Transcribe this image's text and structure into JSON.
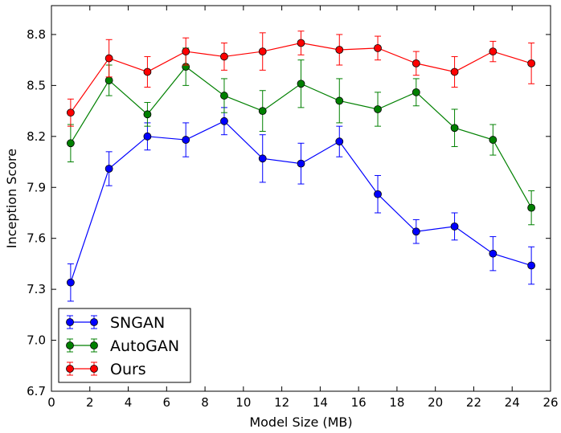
{
  "chart_data": {
    "type": "line",
    "title": "",
    "xlabel": "Model Size (MB)",
    "ylabel": "Inception Score",
    "xlim": [
      0,
      26
    ],
    "ylim": [
      6.7,
      8.97
    ],
    "xticks": [
      0,
      2,
      4,
      6,
      8,
      10,
      12,
      14,
      16,
      18,
      20,
      22,
      24,
      26
    ],
    "yticks": [
      6.7,
      7.0,
      7.3,
      7.6,
      7.9,
      8.2,
      8.5,
      8.8
    ],
    "xtick_labels": [
      "0",
      "2",
      "4",
      "6",
      "8",
      "10",
      "12",
      "14",
      "16",
      "18",
      "20",
      "22",
      "24",
      "26"
    ],
    "ytick_labels": [
      "6.7",
      "7.0",
      "7.3",
      "7.6",
      "7.9",
      "8.2",
      "8.5",
      "8.8"
    ],
    "grid": false,
    "legend_position": "bottom-left",
    "x": [
      1,
      3,
      5,
      7,
      9,
      11,
      13,
      15,
      17,
      19,
      21,
      23,
      25
    ],
    "series": [
      {
        "name": "SNGAN",
        "color": "#0000ff",
        "values": [
          7.34,
          8.01,
          8.2,
          8.18,
          8.29,
          8.07,
          8.04,
          8.17,
          7.86,
          7.64,
          7.67,
          7.51,
          7.44
        ],
        "errors": [
          0.11,
          0.1,
          0.08,
          0.1,
          0.08,
          0.14,
          0.12,
          0.09,
          0.11,
          0.07,
          0.08,
          0.1,
          0.11
        ]
      },
      {
        "name": "AutoGAN",
        "color": "#008000",
        "values": [
          8.16,
          8.53,
          8.33,
          8.61,
          8.44,
          8.35,
          8.51,
          8.41,
          8.36,
          8.46,
          8.25,
          8.18,
          7.78
        ],
        "errors": [
          0.11,
          0.09,
          0.07,
          0.11,
          0.1,
          0.12,
          0.14,
          0.13,
          0.1,
          0.08,
          0.11,
          0.09,
          0.1
        ]
      },
      {
        "name": "Ours",
        "color": "#ff0000",
        "values": [
          8.34,
          8.66,
          8.58,
          8.7,
          8.67,
          8.7,
          8.75,
          8.71,
          8.72,
          8.63,
          8.58,
          8.7,
          8.63
        ],
        "errors": [
          0.08,
          0.11,
          0.09,
          0.08,
          0.08,
          0.11,
          0.07,
          0.09,
          0.07,
          0.07,
          0.09,
          0.06,
          0.12
        ]
      }
    ]
  }
}
